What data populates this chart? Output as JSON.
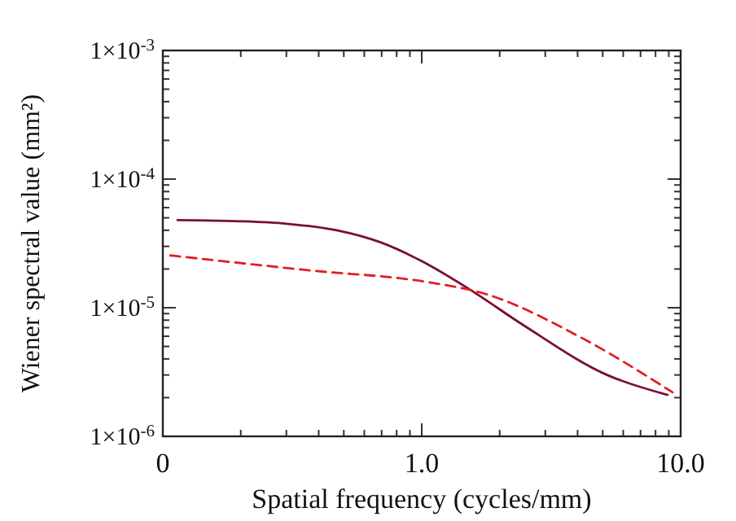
{
  "chart_data": {
    "type": "line",
    "xlabel": "Spatial frequency  (cycles/mm)",
    "ylabel": "Wiener spectral value  (mm²)",
    "log": "xy",
    "grid": false,
    "xlim": [
      0.1,
      10
    ],
    "ylim": [
      1e-06,
      0.001
    ],
    "xticks": [
      {
        "value": 0.1,
        "label": "0"
      },
      {
        "value": 0.2,
        "label": null
      },
      {
        "value": 0.3,
        "label": null
      },
      {
        "value": 0.4,
        "label": null
      },
      {
        "value": 0.5,
        "label": null
      },
      {
        "value": 0.6,
        "label": null
      },
      {
        "value": 0.7,
        "label": null
      },
      {
        "value": 0.8,
        "label": null
      },
      {
        "value": 0.9,
        "label": null
      },
      {
        "value": 1,
        "label": "1.0"
      },
      {
        "value": 2,
        "label": null
      },
      {
        "value": 3,
        "label": null
      },
      {
        "value": 4,
        "label": null
      },
      {
        "value": 5,
        "label": null
      },
      {
        "value": 6,
        "label": null
      },
      {
        "value": 7,
        "label": null
      },
      {
        "value": 8,
        "label": null
      },
      {
        "value": 9,
        "label": null
      },
      {
        "value": 10,
        "label": "10.0"
      }
    ],
    "yticks": [
      {
        "value": 1e-06,
        "label": "1×10$^{-6}$"
      },
      {
        "value": 2e-06,
        "label": null
      },
      {
        "value": 3e-06,
        "label": null
      },
      {
        "value": 4e-06,
        "label": null
      },
      {
        "value": 5e-06,
        "label": null
      },
      {
        "value": 6e-06,
        "label": null
      },
      {
        "value": 7e-06,
        "label": null
      },
      {
        "value": 8e-06,
        "label": null
      },
      {
        "value": 9e-06,
        "label": null
      },
      {
        "value": 1e-05,
        "label": "1×10$^{-5}$"
      },
      {
        "value": 2e-05,
        "label": null
      },
      {
        "value": 3e-05,
        "label": null
      },
      {
        "value": 4e-05,
        "label": null
      },
      {
        "value": 5e-05,
        "label": null
      },
      {
        "value": 6e-05,
        "label": null
      },
      {
        "value": 7e-05,
        "label": null
      },
      {
        "value": 8e-05,
        "label": null
      },
      {
        "value": 9e-05,
        "label": null
      },
      {
        "value": 0.0001,
        "label": "1×10$^{-4}$"
      },
      {
        "value": 0.0002,
        "label": null
      },
      {
        "value": 0.0003,
        "label": null
      },
      {
        "value": 0.0004,
        "label": null
      },
      {
        "value": 0.0005,
        "label": null
      },
      {
        "value": 0.0006,
        "label": null
      },
      {
        "value": 0.0007,
        "label": null
      },
      {
        "value": 0.0008,
        "label": null
      },
      {
        "value": 0.0009,
        "label": null
      },
      {
        "value": 0.001,
        "label": "1×10$^{-3}$"
      }
    ],
    "series": [
      {
        "color": "#7a1030",
        "line_style": "solid",
        "x": [
          0.114,
          0.2,
          0.3,
          0.47,
          0.7,
          1.0,
          1.52,
          2.5,
          5.2,
          8.9
        ],
        "values": [
          4.8e-05,
          4.7e-05,
          4.5e-05,
          4e-05,
          3.2e-05,
          2.3e-05,
          1.4e-05,
          7.2e-06,
          3e-06,
          2.1e-06
        ]
      },
      {
        "color": "#e02020",
        "line_style": "dashed",
        "x": [
          0.107,
          0.37,
          1.06,
          1.74,
          4.1,
          9.3
        ],
        "values": [
          2.55e-05,
          1.95e-05,
          1.58e-05,
          1.29e-05,
          5.9e-06,
          2.2e-06
        ]
      }
    ]
  }
}
